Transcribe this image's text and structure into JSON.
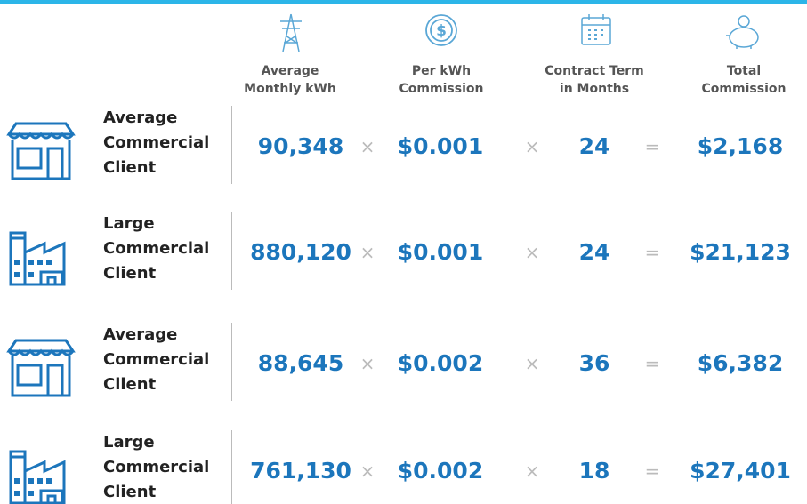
{
  "header": {
    "columns": [
      [
        "Average",
        "Monthly kWh"
      ],
      [
        "Per kWh",
        "Commission"
      ],
      [
        "Contract Term",
        "in Months"
      ],
      [
        "Total",
        "Commission"
      ]
    ]
  },
  "operators": {
    "times": "×",
    "equals": "="
  },
  "rows": [
    {
      "label": [
        "Average",
        "Commercial",
        "Client"
      ],
      "values": [
        "90,348",
        "$0.001",
        "24",
        "$2,168"
      ]
    },
    {
      "label": [
        "Large",
        "Commercial",
        "Client"
      ],
      "values": [
        "880,120",
        "$0.001",
        "24",
        "$21,123"
      ]
    },
    {
      "label": [
        "Average",
        "Commercial",
        "Client"
      ],
      "values": [
        "88,645",
        "$0.002",
        "36",
        "$6,382"
      ]
    },
    {
      "label": [
        "Large",
        "Commercial",
        "Client"
      ],
      "values": [
        "761,130",
        "$0.002",
        "18",
        "$27,401"
      ]
    }
  ]
}
